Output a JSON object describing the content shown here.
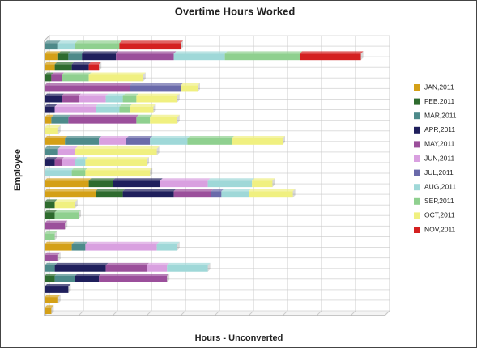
{
  "chart_data": {
    "type": "stacked-barh",
    "title": "Overtime Hours Worked",
    "xlabel": "Hours - Unconverted",
    "ylabel": "Employee",
    "categories": [
      null,
      null,
      null,
      null,
      null,
      null,
      null,
      null,
      null,
      null,
      null,
      null,
      null,
      null,
      null,
      null,
      null,
      null,
      null,
      null,
      null,
      null,
      null,
      null,
      null,
      null
    ],
    "xlim": [
      0,
      10
    ],
    "xticks": [
      0,
      1,
      2,
      3,
      4,
      5,
      6,
      7,
      8,
      9,
      10
    ],
    "grid": true,
    "legend": "right",
    "series": [
      {
        "name": "JAN,2011",
        "color": "#d4a017",
        "values": [
          0,
          0.4,
          0.3,
          0,
          0,
          0,
          0,
          0.2,
          0,
          0.6,
          0,
          0,
          0,
          1.3,
          1.5,
          0,
          0,
          0,
          0,
          0.8,
          0,
          0,
          0,
          0,
          0.4,
          0.2
        ]
      },
      {
        "name": "FEB,2011",
        "color": "#2e6b2e",
        "values": [
          0,
          0.3,
          0.5,
          0.2,
          0,
          0,
          0,
          0,
          0,
          0,
          0,
          0,
          0,
          0.7,
          0.8,
          0.3,
          0.3,
          0,
          0,
          0,
          0,
          0,
          0.3,
          0,
          0,
          0
        ]
      },
      {
        "name": "MAR,2011",
        "color": "#4d8a8a",
        "values": [
          0.4,
          0.4,
          0,
          0,
          0,
          0,
          0,
          0.5,
          0,
          1.0,
          0.4,
          0,
          0,
          0,
          0,
          0,
          0,
          0,
          0,
          0.4,
          0,
          0.3,
          0.6,
          0,
          0,
          0
        ]
      },
      {
        "name": "APR,2011",
        "color": "#1f1f5c",
        "values": [
          0,
          1.0,
          0.5,
          0,
          0,
          0.5,
          0.3,
          0,
          0,
          0,
          0,
          0.3,
          0,
          1.4,
          1.5,
          0,
          0,
          0,
          0,
          0,
          0,
          1.5,
          0.7,
          0.7,
          0,
          0
        ]
      },
      {
        "name": "MAY,2011",
        "color": "#9b4f9b",
        "values": [
          0,
          1.7,
          0,
          0.3,
          2.5,
          0.5,
          0,
          2.0,
          0,
          0,
          0,
          0.2,
          0,
          0,
          1.1,
          0,
          0,
          0.6,
          0,
          0,
          0.4,
          1.2,
          2.0,
          0,
          0,
          0
        ]
      },
      {
        "name": "JUN,2011",
        "color": "#d9a0e0",
        "values": [
          0,
          0,
          0,
          0,
          0,
          0.8,
          1.2,
          0,
          0,
          0.8,
          0.5,
          0.4,
          0,
          1.4,
          0,
          0,
          0,
          0,
          0,
          2.1,
          0,
          0.6,
          0,
          0,
          0,
          0
        ]
      },
      {
        "name": "JUL,2011",
        "color": "#6a6aaa",
        "values": [
          0,
          0,
          0,
          0,
          1.5,
          0,
          0,
          0,
          0,
          0.7,
          0,
          0,
          0,
          0,
          0.3,
          0,
          0,
          0,
          0,
          0,
          0,
          0,
          0,
          0,
          0,
          0
        ]
      },
      {
        "name": "AUG,2011",
        "color": "#9fd8d8",
        "values": [
          0.5,
          1.5,
          0,
          0,
          0,
          0.5,
          0.7,
          0,
          0,
          1.1,
          0,
          0.3,
          0.8,
          1.3,
          0.8,
          0,
          0,
          0,
          0,
          0.6,
          0,
          1.2,
          0,
          0,
          0,
          0
        ]
      },
      {
        "name": "SEP,2011",
        "color": "#8fd08f",
        "values": [
          1.3,
          2.2,
          0,
          0.8,
          0,
          0.4,
          0.3,
          0.4,
          0,
          1.3,
          0,
          0,
          0.4,
          0,
          0,
          0,
          0.7,
          0,
          0.3,
          0,
          0,
          0,
          0,
          0,
          0,
          0
        ]
      },
      {
        "name": "OCT,2011",
        "color": "#f0f080",
        "values": [
          0,
          0,
          0,
          1.6,
          0.5,
          1.2,
          0.7,
          0.8,
          0.4,
          1.5,
          2.4,
          1.8,
          1.9,
          0.6,
          1.3,
          0.6,
          0,
          0,
          0,
          0,
          0,
          0,
          0,
          0,
          0,
          0
        ]
      },
      {
        "name": "NOV,2011",
        "color": "#d42020",
        "values": [
          1.8,
          1.8,
          0.3,
          0,
          0,
          0,
          0,
          0,
          0,
          0,
          0,
          0,
          0,
          0,
          0,
          0,
          0,
          0,
          0,
          0,
          0,
          0,
          0,
          0,
          0,
          0
        ]
      }
    ]
  }
}
